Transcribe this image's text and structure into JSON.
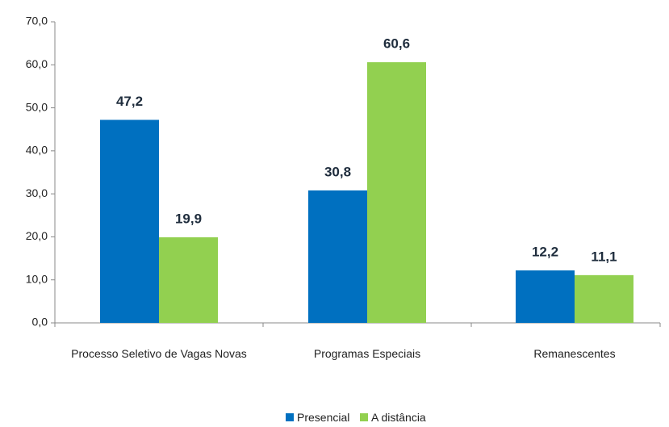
{
  "chart_data": {
    "type": "bar",
    "categories": [
      "Processo Seletivo de Vagas Novas",
      "Programas Especiais",
      "Remanescentes"
    ],
    "series": [
      {
        "name": "Presencial",
        "color": "#0070c0",
        "values": [
          47.2,
          30.8,
          12.2
        ],
        "value_labels": [
          "47,2",
          "30,8",
          "12,2"
        ]
      },
      {
        "name": "A distância",
        "color": "#92d050",
        "values": [
          19.9,
          60.6,
          11.1
        ],
        "value_labels": [
          "19,9",
          "60,6",
          "11,1"
        ]
      }
    ],
    "ylim": [
      0,
      70
    ],
    "yticks": [
      {
        "value": 0,
        "label": "0,0"
      },
      {
        "value": 10,
        "label": "10,0"
      },
      {
        "value": 20,
        "label": "20,0"
      },
      {
        "value": 30,
        "label": "30,0"
      },
      {
        "value": 40,
        "label": "40,0"
      },
      {
        "value": 50,
        "label": "50,0"
      },
      {
        "value": 60,
        "label": "60,0"
      },
      {
        "value": 70,
        "label": "70,0"
      }
    ],
    "legend": "bottom"
  }
}
